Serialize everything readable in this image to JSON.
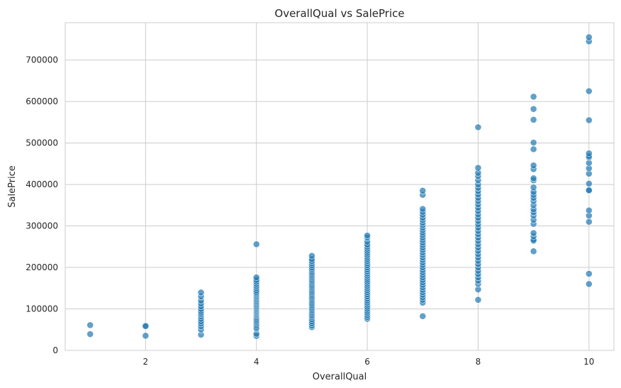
{
  "chart_data": {
    "type": "scatter",
    "title": "OverallQual vs SalePrice",
    "xlabel": "OverallQual",
    "ylabel": "SalePrice",
    "xlim": [
      0.55,
      10.45
    ],
    "ylim": [
      0,
      790000
    ],
    "xticks": [
      2,
      4,
      6,
      8,
      10
    ],
    "yticks": [
      0,
      100000,
      200000,
      300000,
      400000,
      500000,
      600000,
      700000
    ],
    "grid": true,
    "legend": "none",
    "marker_color": "#1f77b4",
    "marker_opacity": 0.7,
    "series": [
      {
        "points": [
          [
            1,
            39300
          ],
          [
            1,
            61000
          ],
          [
            2,
            35311
          ],
          [
            2,
            60000
          ],
          [
            2,
            58500
          ],
          [
            3,
            37900
          ],
          [
            3,
            50000
          ],
          [
            3,
            58000
          ],
          [
            3,
            64500
          ],
          [
            3,
            70000
          ],
          [
            3,
            76000
          ],
          [
            3,
            82000
          ],
          [
            3,
            87000
          ],
          [
            3,
            91000
          ],
          [
            3,
            95000
          ],
          [
            3,
            100000
          ],
          [
            3,
            106000
          ],
          [
            3,
            113000
          ],
          [
            3,
            120000
          ],
          [
            3,
            130000
          ],
          [
            3,
            139600
          ],
          [
            4,
            34900
          ],
          [
            4,
            40000
          ],
          [
            4,
            52000
          ],
          [
            4,
            55000
          ],
          [
            4,
            60000
          ],
          [
            4,
            64000
          ],
          [
            4,
            68000
          ],
          [
            4,
            72000
          ],
          [
            4,
            76000
          ],
          [
            4,
            80000
          ],
          [
            4,
            84000
          ],
          [
            4,
            87000
          ],
          [
            4,
            90000
          ],
          [
            4,
            93000
          ],
          [
            4,
            96000
          ],
          [
            4,
            99000
          ],
          [
            4,
            102000
          ],
          [
            4,
            105000
          ],
          [
            4,
            108000
          ],
          [
            4,
            111000
          ],
          [
            4,
            114000
          ],
          [
            4,
            117000
          ],
          [
            4,
            120000
          ],
          [
            4,
            123000
          ],
          [
            4,
            126000
          ],
          [
            4,
            129000
          ],
          [
            4,
            132000
          ],
          [
            4,
            135000
          ],
          [
            4,
            138000
          ],
          [
            4,
            141000
          ],
          [
            4,
            145000
          ],
          [
            4,
            150000
          ],
          [
            4,
            155000
          ],
          [
            4,
            160000
          ],
          [
            4,
            165000
          ],
          [
            4,
            170000
          ],
          [
            4,
            176000
          ],
          [
            4,
            256000
          ],
          [
            5,
            55993
          ],
          [
            5,
            60000
          ],
          [
            5,
            65000
          ],
          [
            5,
            70000
          ],
          [
            5,
            75000
          ],
          [
            5,
            80000
          ],
          [
            5,
            84000
          ],
          [
            5,
            88000
          ],
          [
            5,
            92000
          ],
          [
            5,
            96000
          ],
          [
            5,
            100000
          ],
          [
            5,
            104000
          ],
          [
            5,
            108000
          ],
          [
            5,
            112000
          ],
          [
            5,
            116000
          ],
          [
            5,
            120000
          ],
          [
            5,
            124000
          ],
          [
            5,
            128000
          ],
          [
            5,
            132000
          ],
          [
            5,
            136000
          ],
          [
            5,
            140000
          ],
          [
            5,
            144000
          ],
          [
            5,
            148000
          ],
          [
            5,
            152000
          ],
          [
            5,
            156000
          ],
          [
            5,
            160000
          ],
          [
            5,
            164000
          ],
          [
            5,
            168000
          ],
          [
            5,
            172000
          ],
          [
            5,
            176000
          ],
          [
            5,
            180000
          ],
          [
            5,
            184000
          ],
          [
            5,
            188000
          ],
          [
            5,
            192000
          ],
          [
            5,
            196000
          ],
          [
            5,
            200000
          ],
          [
            5,
            205000
          ],
          [
            5,
            210000
          ],
          [
            5,
            215000
          ],
          [
            5,
            220000
          ],
          [
            5,
            228000
          ],
          [
            6,
            76000
          ],
          [
            6,
            80000
          ],
          [
            6,
            85000
          ],
          [
            6,
            90000
          ],
          [
            6,
            95000
          ],
          [
            6,
            100000
          ],
          [
            6,
            105000
          ],
          [
            6,
            110000
          ],
          [
            6,
            115000
          ],
          [
            6,
            120000
          ],
          [
            6,
            125000
          ],
          [
            6,
            130000
          ],
          [
            6,
            135000
          ],
          [
            6,
            140000
          ],
          [
            6,
            145000
          ],
          [
            6,
            150000
          ],
          [
            6,
            155000
          ],
          [
            6,
            160000
          ],
          [
            6,
            165000
          ],
          [
            6,
            170000
          ],
          [
            6,
            175000
          ],
          [
            6,
            180000
          ],
          [
            6,
            185000
          ],
          [
            6,
            190000
          ],
          [
            6,
            195000
          ],
          [
            6,
            200000
          ],
          [
            6,
            205000
          ],
          [
            6,
            210000
          ],
          [
            6,
            215000
          ],
          [
            6,
            220000
          ],
          [
            6,
            225000
          ],
          [
            6,
            230000
          ],
          [
            6,
            235000
          ],
          [
            6,
            240000
          ],
          [
            6,
            245000
          ],
          [
            6,
            250000
          ],
          [
            6,
            255000
          ],
          [
            6,
            262000
          ],
          [
            6,
            272000
          ],
          [
            6,
            277000
          ],
          [
            7,
            82500
          ],
          [
            7,
            115000
          ],
          [
            7,
            122000
          ],
          [
            7,
            128000
          ],
          [
            7,
            134000
          ],
          [
            7,
            140000
          ],
          [
            7,
            146000
          ],
          [
            7,
            152000
          ],
          [
            7,
            158000
          ],
          [
            7,
            164000
          ],
          [
            7,
            170000
          ],
          [
            7,
            176000
          ],
          [
            7,
            182000
          ],
          [
            7,
            188000
          ],
          [
            7,
            194000
          ],
          [
            7,
            200000
          ],
          [
            7,
            206000
          ],
          [
            7,
            212000
          ],
          [
            7,
            218000
          ],
          [
            7,
            224000
          ],
          [
            7,
            230000
          ],
          [
            7,
            236000
          ],
          [
            7,
            242000
          ],
          [
            7,
            248000
          ],
          [
            7,
            254000
          ],
          [
            7,
            260000
          ],
          [
            7,
            266000
          ],
          [
            7,
            272000
          ],
          [
            7,
            278000
          ],
          [
            7,
            284000
          ],
          [
            7,
            290000
          ],
          [
            7,
            296000
          ],
          [
            7,
            302000
          ],
          [
            7,
            308000
          ],
          [
            7,
            314000
          ],
          [
            7,
            320000
          ],
          [
            7,
            327000
          ],
          [
            7,
            334000
          ],
          [
            7,
            341000
          ],
          [
            7,
            375000
          ],
          [
            7,
            385000
          ],
          [
            8,
            122000
          ],
          [
            8,
            147000
          ],
          [
            8,
            160000
          ],
          [
            8,
            168000
          ],
          [
            8,
            176000
          ],
          [
            8,
            184000
          ],
          [
            8,
            192000
          ],
          [
            8,
            200000
          ],
          [
            8,
            208000
          ],
          [
            8,
            216000
          ],
          [
            8,
            224000
          ],
          [
            8,
            232000
          ],
          [
            8,
            240000
          ],
          [
            8,
            248000
          ],
          [
            8,
            256000
          ],
          [
            8,
            264000
          ],
          [
            8,
            272000
          ],
          [
            8,
            280000
          ],
          [
            8,
            288000
          ],
          [
            8,
            296000
          ],
          [
            8,
            304000
          ],
          [
            8,
            312000
          ],
          [
            8,
            320000
          ],
          [
            8,
            328000
          ],
          [
            8,
            336000
          ],
          [
            8,
            344000
          ],
          [
            8,
            352000
          ],
          [
            8,
            360000
          ],
          [
            8,
            368000
          ],
          [
            8,
            376000
          ],
          [
            8,
            384000
          ],
          [
            8,
            392000
          ],
          [
            8,
            400000
          ],
          [
            8,
            410000
          ],
          [
            8,
            420000
          ],
          [
            8,
            428000
          ],
          [
            8,
            440000
          ],
          [
            8,
            538000
          ],
          [
            9,
            239000
          ],
          [
            9,
            264000
          ],
          [
            9,
            266000
          ],
          [
            9,
            275000
          ],
          [
            9,
            283000
          ],
          [
            9,
            305000
          ],
          [
            9,
            315000
          ],
          [
            9,
            325000
          ],
          [
            9,
            333000
          ],
          [
            9,
            340000
          ],
          [
            9,
            350000
          ],
          [
            9,
            360000
          ],
          [
            9,
            368000
          ],
          [
            9,
            375000
          ],
          [
            9,
            382000
          ],
          [
            9,
            393000
          ],
          [
            9,
            410000
          ],
          [
            9,
            415000
          ],
          [
            9,
            437000
          ],
          [
            9,
            446000
          ],
          [
            9,
            485000
          ],
          [
            9,
            501000
          ],
          [
            9,
            556000
          ],
          [
            9,
            582000
          ],
          [
            9,
            611657
          ],
          [
            10,
            160000
          ],
          [
            10,
            184750
          ],
          [
            10,
            310000
          ],
          [
            10,
            325000
          ],
          [
            10,
            337500
          ],
          [
            10,
            385000
          ],
          [
            10,
            386250
          ],
          [
            10,
            402000
          ],
          [
            10,
            426000
          ],
          [
            10,
            438780
          ],
          [
            10,
            451950
          ],
          [
            10,
            465000
          ],
          [
            10,
            468000
          ],
          [
            10,
            475000
          ],
          [
            10,
            555000
          ],
          [
            10,
            625000
          ],
          [
            10,
            745000
          ],
          [
            10,
            755000
          ]
        ]
      }
    ]
  }
}
